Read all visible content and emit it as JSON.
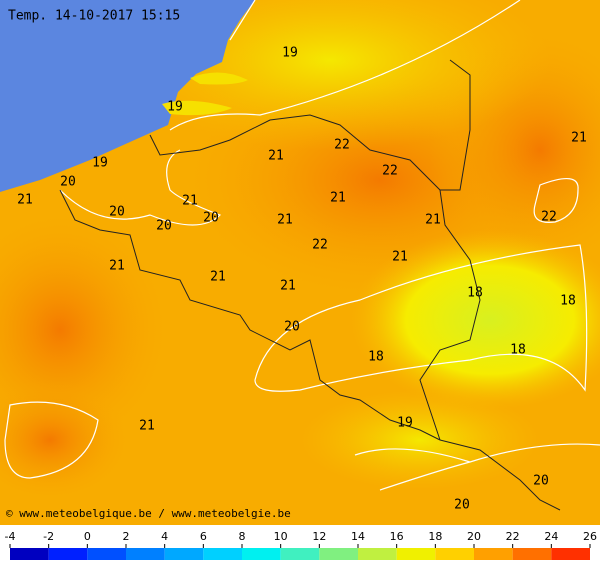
{
  "header": {
    "title": "Temp. 14-10-2017 15:15"
  },
  "footer": {
    "credit": "© www.meteobelgique.be / www.meteobelgie.be"
  },
  "map": {
    "labels": [
      19,
      19,
      19,
      20,
      21,
      20,
      21,
      20,
      20,
      21,
      22,
      22,
      21,
      21,
      22,
      21,
      21,
      21,
      22,
      21,
      21,
      21,
      18,
      18,
      20,
      18,
      18,
      19,
      21,
      20,
      20
    ]
  },
  "colorbar": {
    "ticks": [
      -4,
      -2,
      0,
      2,
      4,
      6,
      8,
      10,
      12,
      14,
      16,
      18,
      20,
      22,
      24,
      26
    ],
    "colors": [
      "#0000c0",
      "#0020ff",
      "#0050ff",
      "#0080ff",
      "#00a8ff",
      "#00d0ff",
      "#00f0f0",
      "#40f0c0",
      "#80f080",
      "#c0f040",
      "#f0f000",
      "#ffd000",
      "#ffa000",
      "#ff7000",
      "#ff3000"
    ]
  }
}
